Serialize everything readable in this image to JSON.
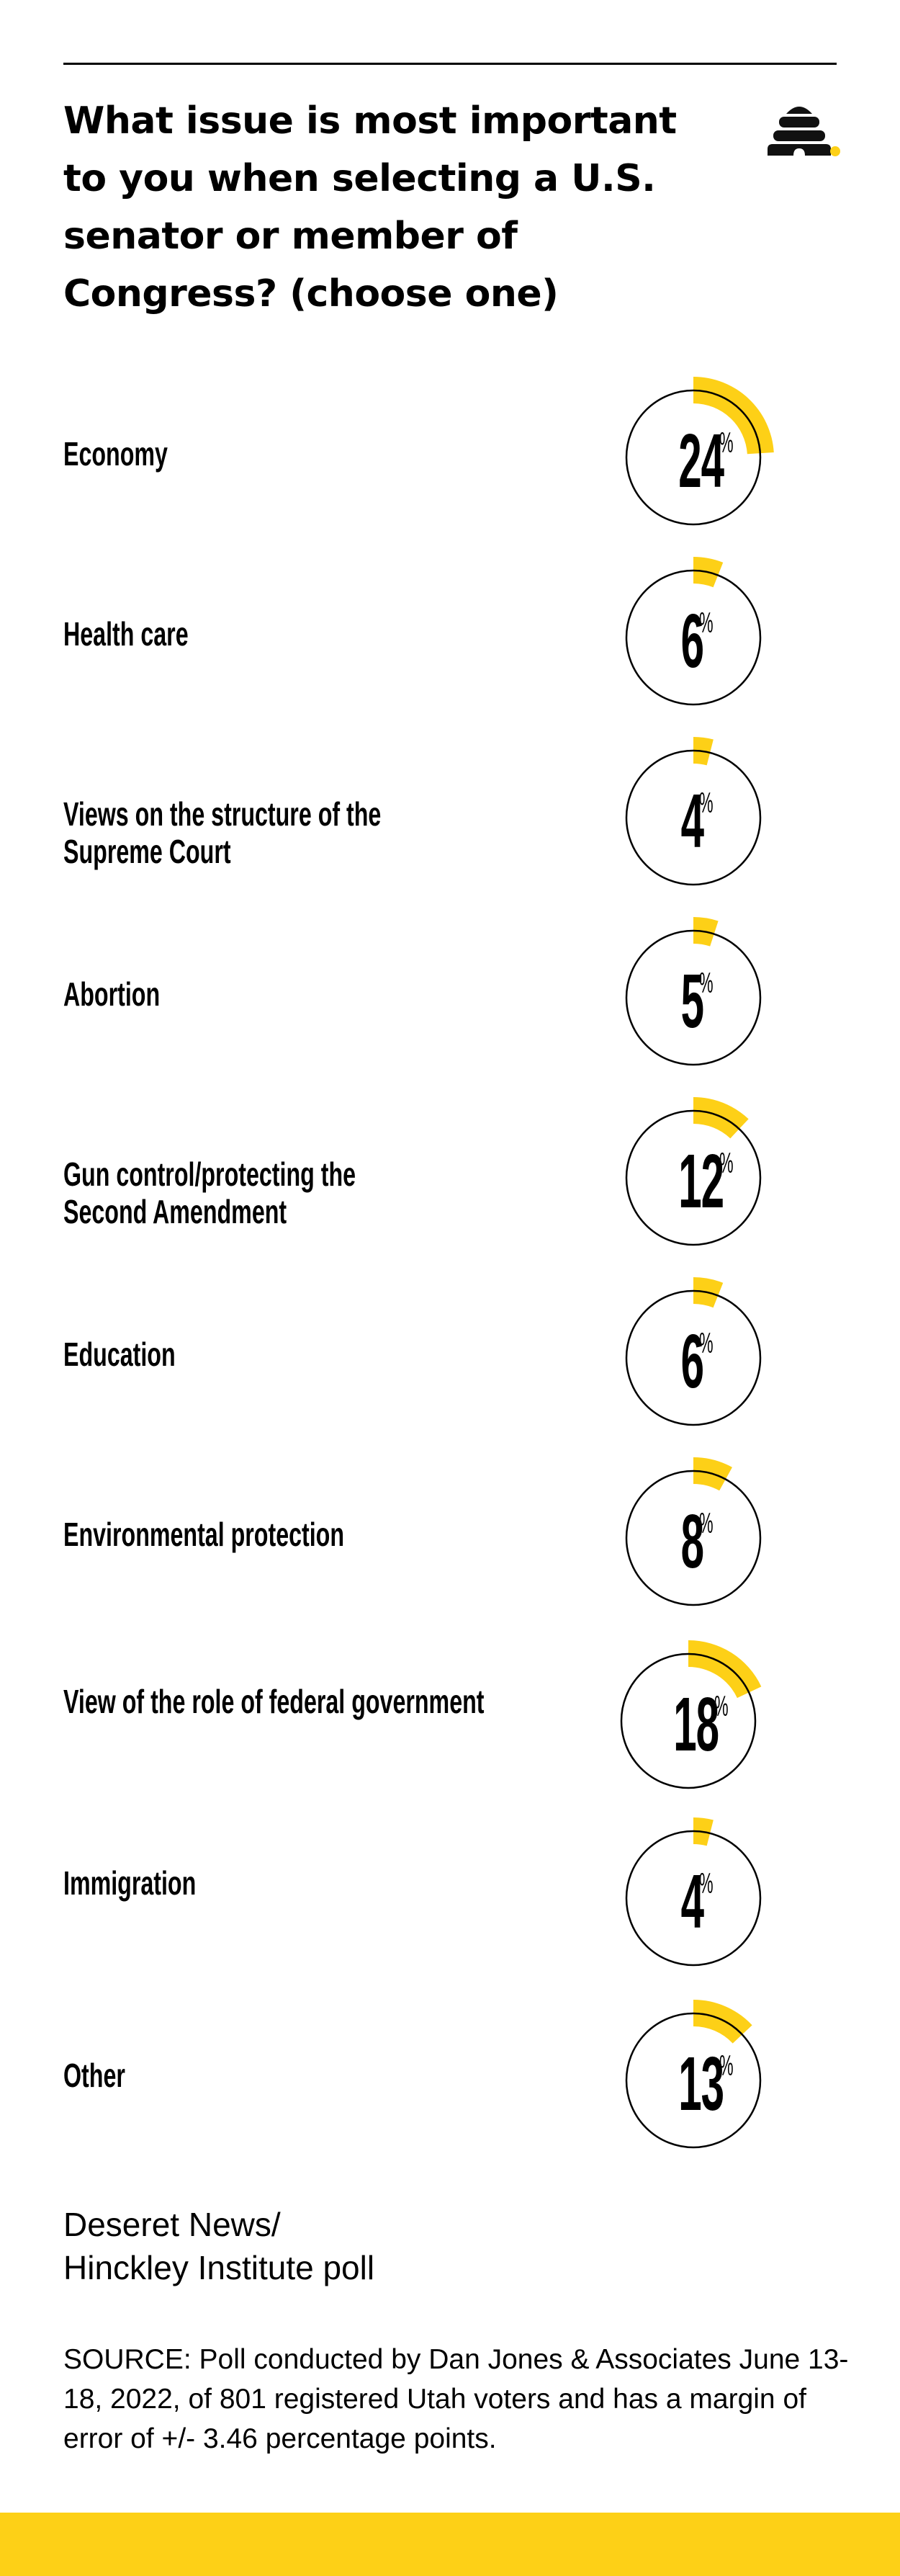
{
  "header": {
    "title": "What issue is most important to you when selecting a U.S. senator or member of Congress? (choose one)",
    "logo_icon": "beehive-icon"
  },
  "colors": {
    "accent": "#FDD017",
    "text": "#000000",
    "background": "#FFFFFF"
  },
  "items": [
    {
      "label": "Economy",
      "value": "24",
      "unit": "%"
    },
    {
      "label": "Health care",
      "value": "6",
      "unit": "%"
    },
    {
      "label": "Views on the structure of the Supreme Court",
      "line1": "Views on the structure of the",
      "line2": "Supreme Court",
      "value": "4",
      "unit": "%"
    },
    {
      "label": "Abortion",
      "value": "5",
      "unit": "%"
    },
    {
      "label": "Gun control/protecting the Second Amendment",
      "line1": "Gun control/protecting the",
      "line2": "Second Amendment",
      "value": "12",
      "unit": "%"
    },
    {
      "label": "Education",
      "value": "6",
      "unit": "%"
    },
    {
      "label": "Environmental protection",
      "value": "8",
      "unit": "%"
    },
    {
      "label": "View of the role of federal government",
      "value": "18",
      "unit": "%"
    },
    {
      "label": "Immigration",
      "value": "4",
      "unit": "%"
    },
    {
      "label": "Other",
      "value": "13",
      "unit": "%"
    }
  ],
  "footer": {
    "credit_line1": "Deseret News/",
    "credit_line2": "Hinckley Institute poll",
    "source": "SOURCE: Poll conducted by Dan Jones & Associates June 13-18, 2022, of 801 registered Utah voters and has a margin of error of +/- 3.46 percentage points."
  },
  "chart_data": {
    "type": "pie",
    "subtype": "radial-progress",
    "title": "What issue is most important to you when selecting a U.S. senator or member of Congress? (choose one)",
    "categories": [
      "Economy",
      "Health care",
      "Views on the structure of the Supreme Court",
      "Abortion",
      "Gun control/protecting the Second Amendment",
      "Education",
      "Environmental protection",
      "View of the role of federal government",
      "Immigration",
      "Other"
    ],
    "values": [
      24,
      6,
      4,
      5,
      12,
      6,
      8,
      18,
      4,
      13
    ],
    "unit": "%",
    "xlabel": "",
    "ylabel": "",
    "grid": false,
    "legend": "none",
    "source": "SOURCE: Poll conducted by Dan Jones & Associates June 13-18, 2022, of 801 registered Utah voters and has a margin of error of +/- 3.46 percentage points.",
    "credit": "Deseret News/Hinckley Institute poll"
  }
}
